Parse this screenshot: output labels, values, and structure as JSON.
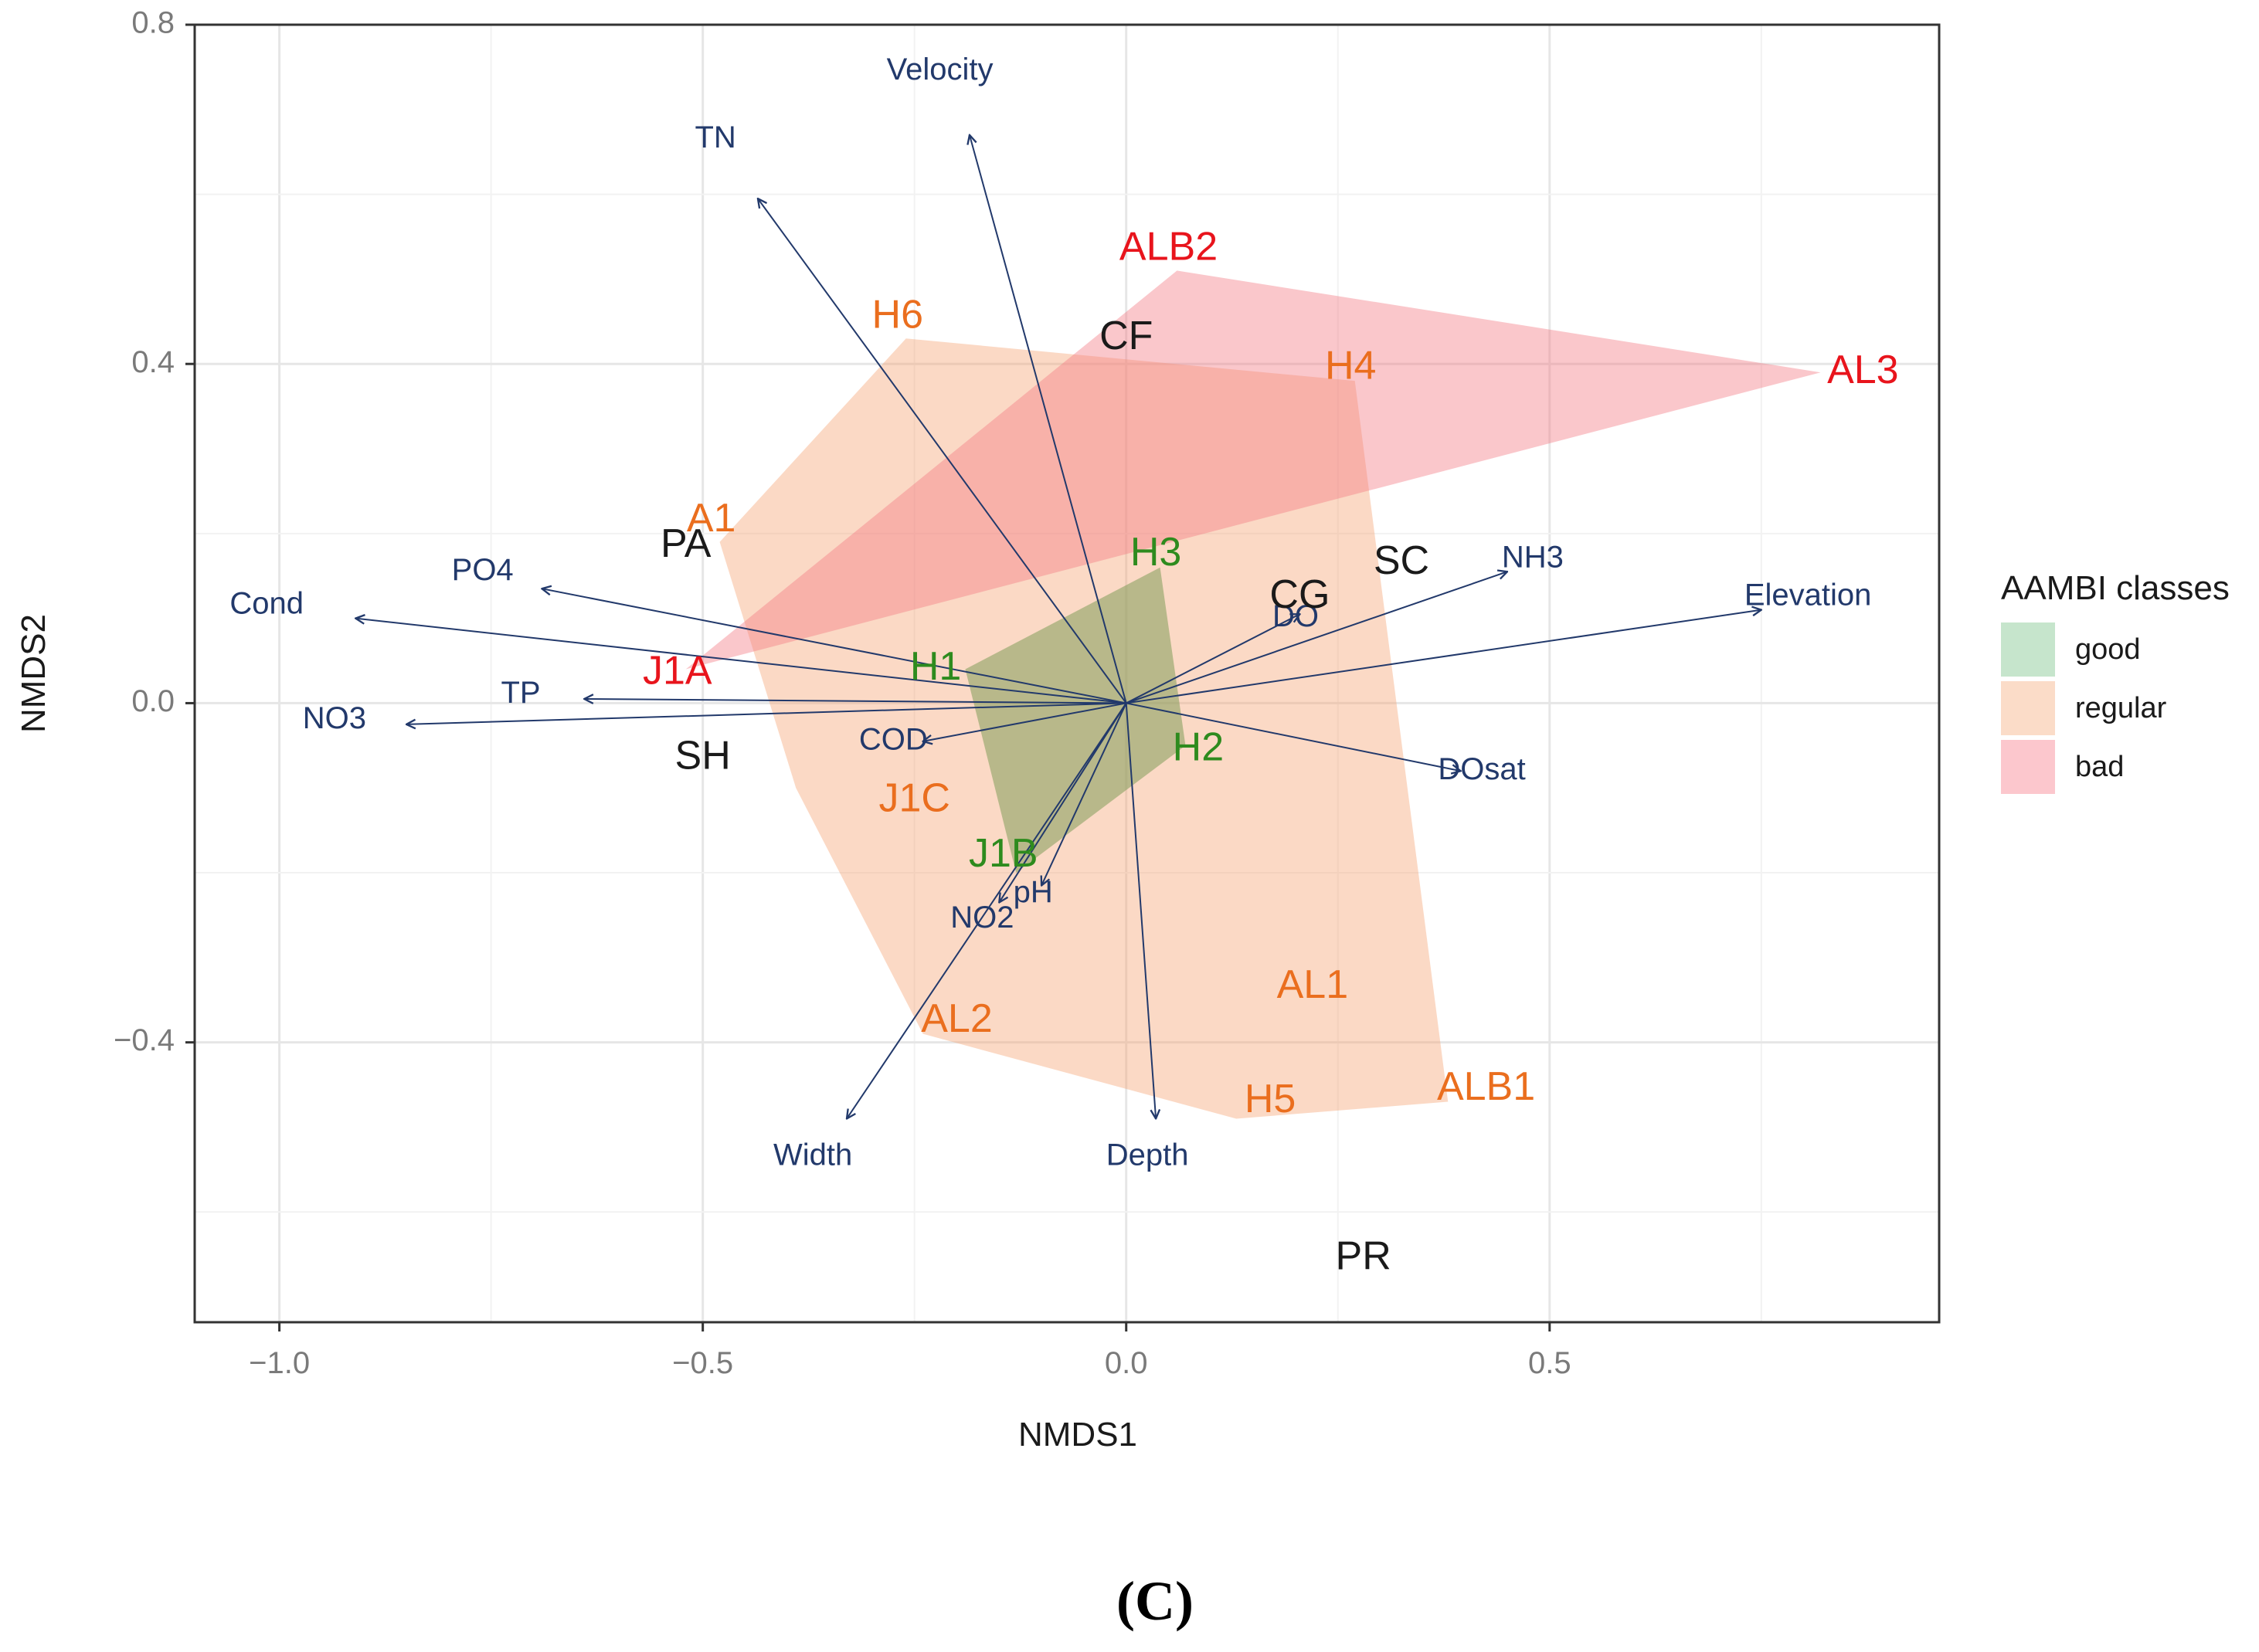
{
  "chart_data": {
    "type": "scatter",
    "subtype": "NMDS ordination biplot",
    "xlabel": "NMDS1",
    "ylabel": "NMDS2",
    "xlim": [
      -1.1,
      0.96
    ],
    "ylim": [
      -0.73,
      0.8
    ],
    "xticks": [
      -1.0,
      -0.5,
      0.0,
      0.5
    ],
    "xtick_labels": [
      "−1.0",
      "−0.5",
      "0.0",
      "0.5"
    ],
    "yticks": [
      -0.4,
      0.0,
      0.4,
      0.8
    ],
    "ytick_labels": [
      "−0.4",
      "0.0",
      "0.4",
      "0.8"
    ],
    "grid": true,
    "panel_label": "(C)",
    "legend": {
      "title": "AAMBI classes",
      "position": "right",
      "entries": [
        {
          "label": "good",
          "color": "#c6e5cc"
        },
        {
          "label": "regular",
          "color": "#fbdcc8"
        },
        {
          "label": "bad",
          "color": "#fcc7cd"
        }
      ]
    },
    "hulls": [
      {
        "class": "regular",
        "fill": "#f6a575",
        "opacity": 0.42,
        "points": [
          [
            -0.48,
            0.19
          ],
          [
            -0.26,
            0.43
          ],
          [
            0.27,
            0.38
          ],
          [
            0.38,
            -0.47
          ],
          [
            0.13,
            -0.49
          ],
          [
            -0.24,
            -0.39
          ],
          [
            -0.39,
            -0.1
          ]
        ]
      },
      {
        "class": "bad",
        "fill": "#f37a82",
        "opacity": 0.42,
        "points": [
          [
            -0.52,
            0.04
          ],
          [
            0.06,
            0.51
          ],
          [
            0.82,
            0.39
          ]
        ]
      },
      {
        "class": "good",
        "fill": "#7a9a55",
        "opacity": 0.52,
        "points": [
          [
            -0.19,
            0.04
          ],
          [
            0.04,
            0.16
          ],
          [
            0.07,
            -0.05
          ],
          [
            -0.13,
            -0.2
          ]
        ]
      }
    ],
    "sites": [
      {
        "label": "ALB2",
        "x": 0.05,
        "y": 0.535,
        "class": "bad",
        "color": "#e8141c"
      },
      {
        "label": "AL3",
        "x": 0.87,
        "y": 0.39,
        "class": "bad",
        "color": "#e8141c"
      },
      {
        "label": "J1A",
        "x": -0.53,
        "y": 0.035,
        "class": "bad",
        "color": "#e8141c"
      },
      {
        "label": "H6",
        "x": -0.27,
        "y": 0.455,
        "class": "regular",
        "color": "#ea6e1e"
      },
      {
        "label": "H4",
        "x": 0.265,
        "y": 0.395,
        "class": "regular",
        "color": "#ea6e1e"
      },
      {
        "label": "A1",
        "x": -0.49,
        "y": 0.215,
        "class": "regular",
        "color": "#ea6e1e"
      },
      {
        "label": "J1C",
        "x": -0.25,
        "y": -0.115,
        "class": "regular",
        "color": "#ea6e1e"
      },
      {
        "label": "AL1",
        "x": 0.22,
        "y": -0.335,
        "class": "regular",
        "color": "#ea6e1e"
      },
      {
        "label": "AL2",
        "x": -0.2,
        "y": -0.375,
        "class": "regular",
        "color": "#ea6e1e"
      },
      {
        "label": "H5",
        "x": 0.17,
        "y": -0.47,
        "class": "regular",
        "color": "#ea6e1e"
      },
      {
        "label": "ALB1",
        "x": 0.425,
        "y": -0.455,
        "class": "regular",
        "color": "#ea6e1e"
      },
      {
        "label": "H3",
        "x": 0.035,
        "y": 0.175,
        "class": "good",
        "color": "#2e8b1e"
      },
      {
        "label": "H1",
        "x": -0.225,
        "y": 0.04,
        "class": "good",
        "color": "#2e8b1e"
      },
      {
        "label": "H2",
        "x": 0.085,
        "y": -0.055,
        "class": "good",
        "color": "#2e8b1e"
      },
      {
        "label": "J1B",
        "x": -0.145,
        "y": -0.18,
        "class": "good",
        "color": "#2e8b1e"
      },
      {
        "label": "CF",
        "x": 0.0,
        "y": 0.43,
        "class": "unclassified",
        "color": "#1a1a1a"
      },
      {
        "label": "PA",
        "x": -0.52,
        "y": 0.185,
        "class": "unclassified",
        "color": "#1a1a1a"
      },
      {
        "label": "CG",
        "x": 0.205,
        "y": 0.125,
        "class": "unclassified",
        "color": "#1a1a1a"
      },
      {
        "label": "SC",
        "x": 0.325,
        "y": 0.165,
        "class": "unclassified",
        "color": "#1a1a1a"
      },
      {
        "label": "SH",
        "x": -0.5,
        "y": -0.065,
        "class": "unclassified",
        "color": "#1a1a1a"
      },
      {
        "label": "PR",
        "x": 0.28,
        "y": -0.655,
        "class": "unclassified",
        "color": "#1a1a1a"
      }
    ],
    "vectors": [
      {
        "label": "Velocity",
        "x": -0.185,
        "y": 0.67,
        "label_x": -0.22,
        "label_y": 0.745
      },
      {
        "label": "TN",
        "x": -0.435,
        "y": 0.595,
        "label_x": -0.485,
        "label_y": 0.665
      },
      {
        "label": "PO4",
        "x": -0.69,
        "y": 0.135,
        "label_x": -0.76,
        "label_y": 0.155
      },
      {
        "label": "Cond",
        "x": -0.91,
        "y": 0.1,
        "label_x": -1.015,
        "label_y": 0.115
      },
      {
        "label": "TP",
        "x": -0.64,
        "y": 0.005,
        "label_x": -0.715,
        "label_y": 0.01
      },
      {
        "label": "NO3",
        "x": -0.85,
        "y": -0.025,
        "label_x": -0.935,
        "label_y": -0.02
      },
      {
        "label": "COD",
        "x": -0.24,
        "y": -0.045,
        "label_x": -0.275,
        "label_y": -0.045
      },
      {
        "label": "NO2",
        "x": -0.15,
        "y": -0.235,
        "label_x": -0.17,
        "label_y": -0.255
      },
      {
        "label": "pH",
        "x": -0.1,
        "y": -0.215,
        "label_x": -0.11,
        "label_y": -0.225
      },
      {
        "label": "Width",
        "x": -0.33,
        "y": -0.49,
        "label_x": -0.37,
        "label_y": -0.535
      },
      {
        "label": "Depth",
        "x": 0.035,
        "y": -0.49,
        "label_x": 0.025,
        "label_y": -0.535
      },
      {
        "label": "DO",
        "x": 0.205,
        "y": 0.105,
        "label_x": 0.2,
        "label_y": 0.1
      },
      {
        "label": "NH3",
        "x": 0.45,
        "y": 0.155,
        "label_x": 0.48,
        "label_y": 0.17
      },
      {
        "label": "Elevation",
        "x": 0.75,
        "y": 0.11,
        "label_x": 0.805,
        "label_y": 0.125
      },
      {
        "label": "DOsat",
        "x": 0.395,
        "y": -0.08,
        "label_x": 0.42,
        "label_y": -0.08
      }
    ]
  }
}
